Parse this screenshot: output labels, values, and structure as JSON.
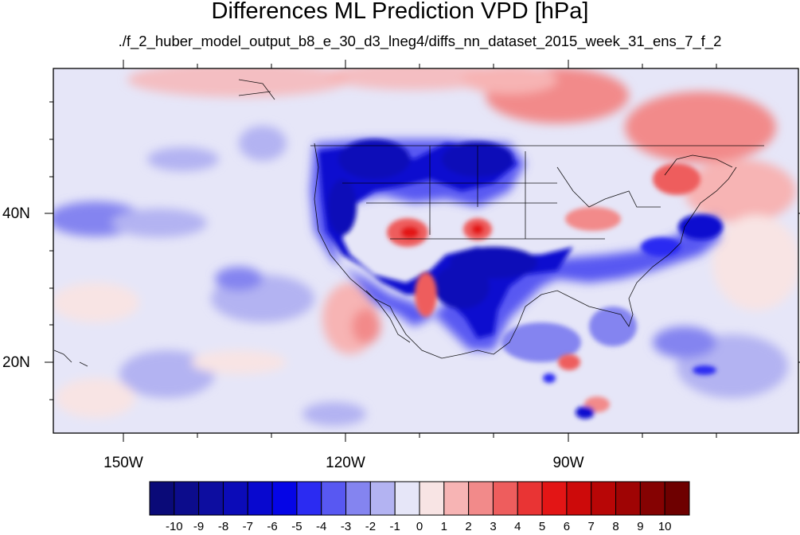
{
  "title": "Differences ML Prediction VPD [hPa]",
  "subtitle": "./f_2_huber_model_output_b8_e_30_d3_lneg4/diffs_nn_dataset_2015_week_31_ens_7_f_2",
  "lat_labels": [
    "40N",
    "20N"
  ],
  "lon_labels": [
    "150W",
    "120W",
    "90W"
  ],
  "colorbar": {
    "labels": [
      "-10",
      "-9",
      "-8",
      "-7",
      "-6",
      "-5",
      "-4",
      "-3",
      "-2",
      "-1",
      "0",
      "1",
      "2",
      "3",
      "4",
      "5",
      "6",
      "7",
      "8",
      "9",
      "10"
    ],
    "colors": [
      "#0a0a78",
      "#0c0c8c",
      "#0d0da0",
      "#0b0bb8",
      "#0808cf",
      "#0505e6",
      "#2b2bf2",
      "#5858f2",
      "#8484f0",
      "#b3b3f2",
      "#e6e6f8",
      "#f8e4e4",
      "#f7b4b4",
      "#f28a8a",
      "#ee5d5d",
      "#e93434",
      "#e31515",
      "#cd0a0a",
      "#b80606",
      "#9f0404",
      "#850202",
      "#6e0000"
    ]
  }
}
